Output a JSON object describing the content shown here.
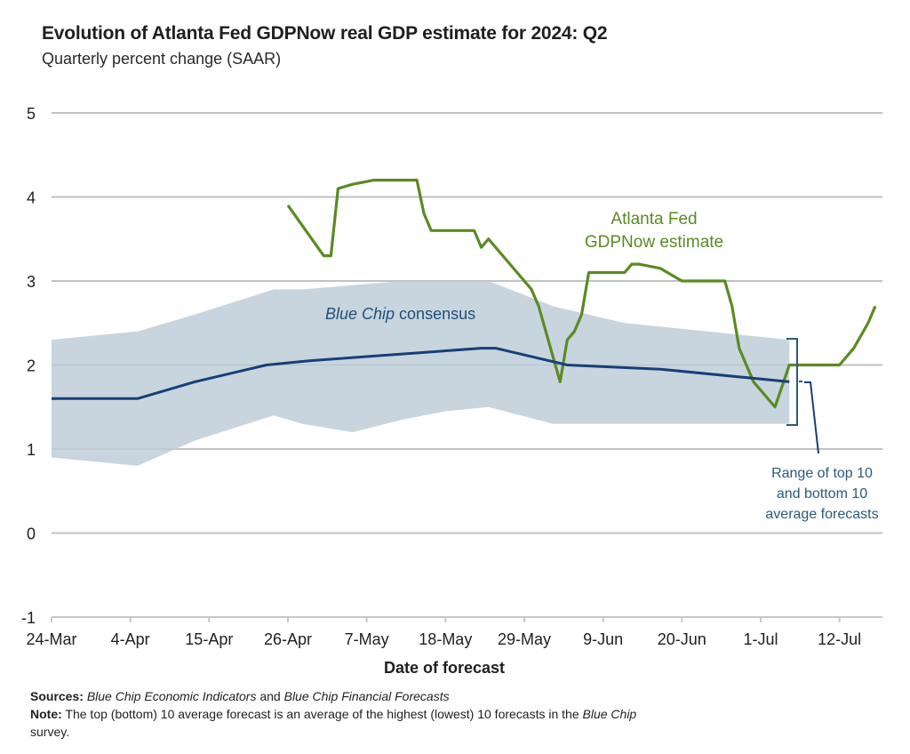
{
  "colors": {
    "gdpnow": "#5b8a24",
    "consensus": "#173f78",
    "band": "#c5d3dc",
    "grid": "#c8c8c8",
    "range_label": "#2b5a7a"
  },
  "chart_data": {
    "type": "line",
    "title": "Evolution of Atlanta Fed GDPNow real GDP estimate for 2024: Q2",
    "subtitle": "Quarterly percent change (SAAR)",
    "xlabel": "Date of forecast",
    "ylabel": "",
    "ylim": [
      -1,
      5
    ],
    "yticks": [
      5,
      4,
      3,
      2,
      1,
      0,
      -1
    ],
    "x_unit": "days since 24-Mar-2024",
    "xlim": [
      0,
      116
    ],
    "xticks": [
      {
        "day": 0,
        "label": "24-Mar"
      },
      {
        "day": 11,
        "label": "4-Apr"
      },
      {
        "day": 22,
        "label": "15-Apr"
      },
      {
        "day": 33,
        "label": "26-Apr"
      },
      {
        "day": 44,
        "label": "7-May"
      },
      {
        "day": 55,
        "label": "18-May"
      },
      {
        "day": 66,
        "label": "29-May"
      },
      {
        "day": 77,
        "label": "9-Jun"
      },
      {
        "day": 88,
        "label": "20-Jun"
      },
      {
        "day": 99,
        "label": "1-Jul"
      },
      {
        "day": 110,
        "label": "12-Jul"
      }
    ],
    "grid": true,
    "series": [
      {
        "name": "Atlanta Fed GDPNow estimate",
        "kind": "line",
        "x": [
          33,
          38,
          39,
          40,
          42,
          45,
          51,
          52,
          53,
          59,
          60,
          61,
          67,
          68,
          71,
          72,
          73,
          74,
          75,
          80,
          81,
          82,
          85,
          87,
          88,
          94,
          95,
          96,
          98,
          101,
          103,
          110,
          112,
          114,
          115
        ],
        "y": [
          3.9,
          3.3,
          3.3,
          4.1,
          4.15,
          4.2,
          4.2,
          3.8,
          3.6,
          3.6,
          3.4,
          3.5,
          2.9,
          2.7,
          1.8,
          2.3,
          2.4,
          2.6,
          3.1,
          3.1,
          3.2,
          3.2,
          3.15,
          3.05,
          3.0,
          3.0,
          2.7,
          2.2,
          1.8,
          1.5,
          2.0,
          2.0,
          2.2,
          2.5,
          2.7
        ]
      },
      {
        "name": "Blue Chip consensus",
        "kind": "line",
        "x": [
          0,
          12,
          20,
          30,
          36,
          44,
          52,
          60,
          62,
          67,
          72,
          85,
          103
        ],
        "y": [
          1.6,
          1.6,
          1.8,
          2.0,
          2.05,
          2.1,
          2.15,
          2.2,
          2.2,
          2.1,
          2.0,
          1.95,
          1.8
        ]
      },
      {
        "name": "Range of top 10 and bottom 10 average forecasts",
        "kind": "band",
        "x": [
          0,
          12,
          20,
          31,
          35,
          42,
          49,
          55,
          61,
          70,
          80,
          103
        ],
        "upper": [
          2.3,
          2.4,
          2.6,
          2.9,
          2.9,
          2.95,
          3.0,
          3.0,
          3.0,
          2.7,
          2.5,
          2.3
        ],
        "lower": [
          0.9,
          0.8,
          1.1,
          1.4,
          1.3,
          1.2,
          1.35,
          1.45,
          1.5,
          1.3,
          1.3,
          1.3
        ]
      }
    ],
    "annotations": {
      "gdpnow_line1": "Atlanta Fed",
      "gdpnow_line2": "GDPNow estimate",
      "consensus_italic": "Blue Chip",
      "consensus_rest": " consensus",
      "range_line1": "Range of top 10",
      "range_line2": "and bottom 10",
      "range_line3": "average forecasts"
    }
  },
  "footer": {
    "sources_label": "Sources:",
    "sources_italic1": "Blue Chip Economic Indicators",
    "sources_and": " and ",
    "sources_italic2": "Blue Chip Financial Forecasts",
    "note_label": "Note:",
    "note_text": " The top (bottom) 10 average forecast is an average of the highest (lowest) 10 forecasts in the ",
    "note_italic": "Blue Chip",
    "note_line2": "survey."
  }
}
